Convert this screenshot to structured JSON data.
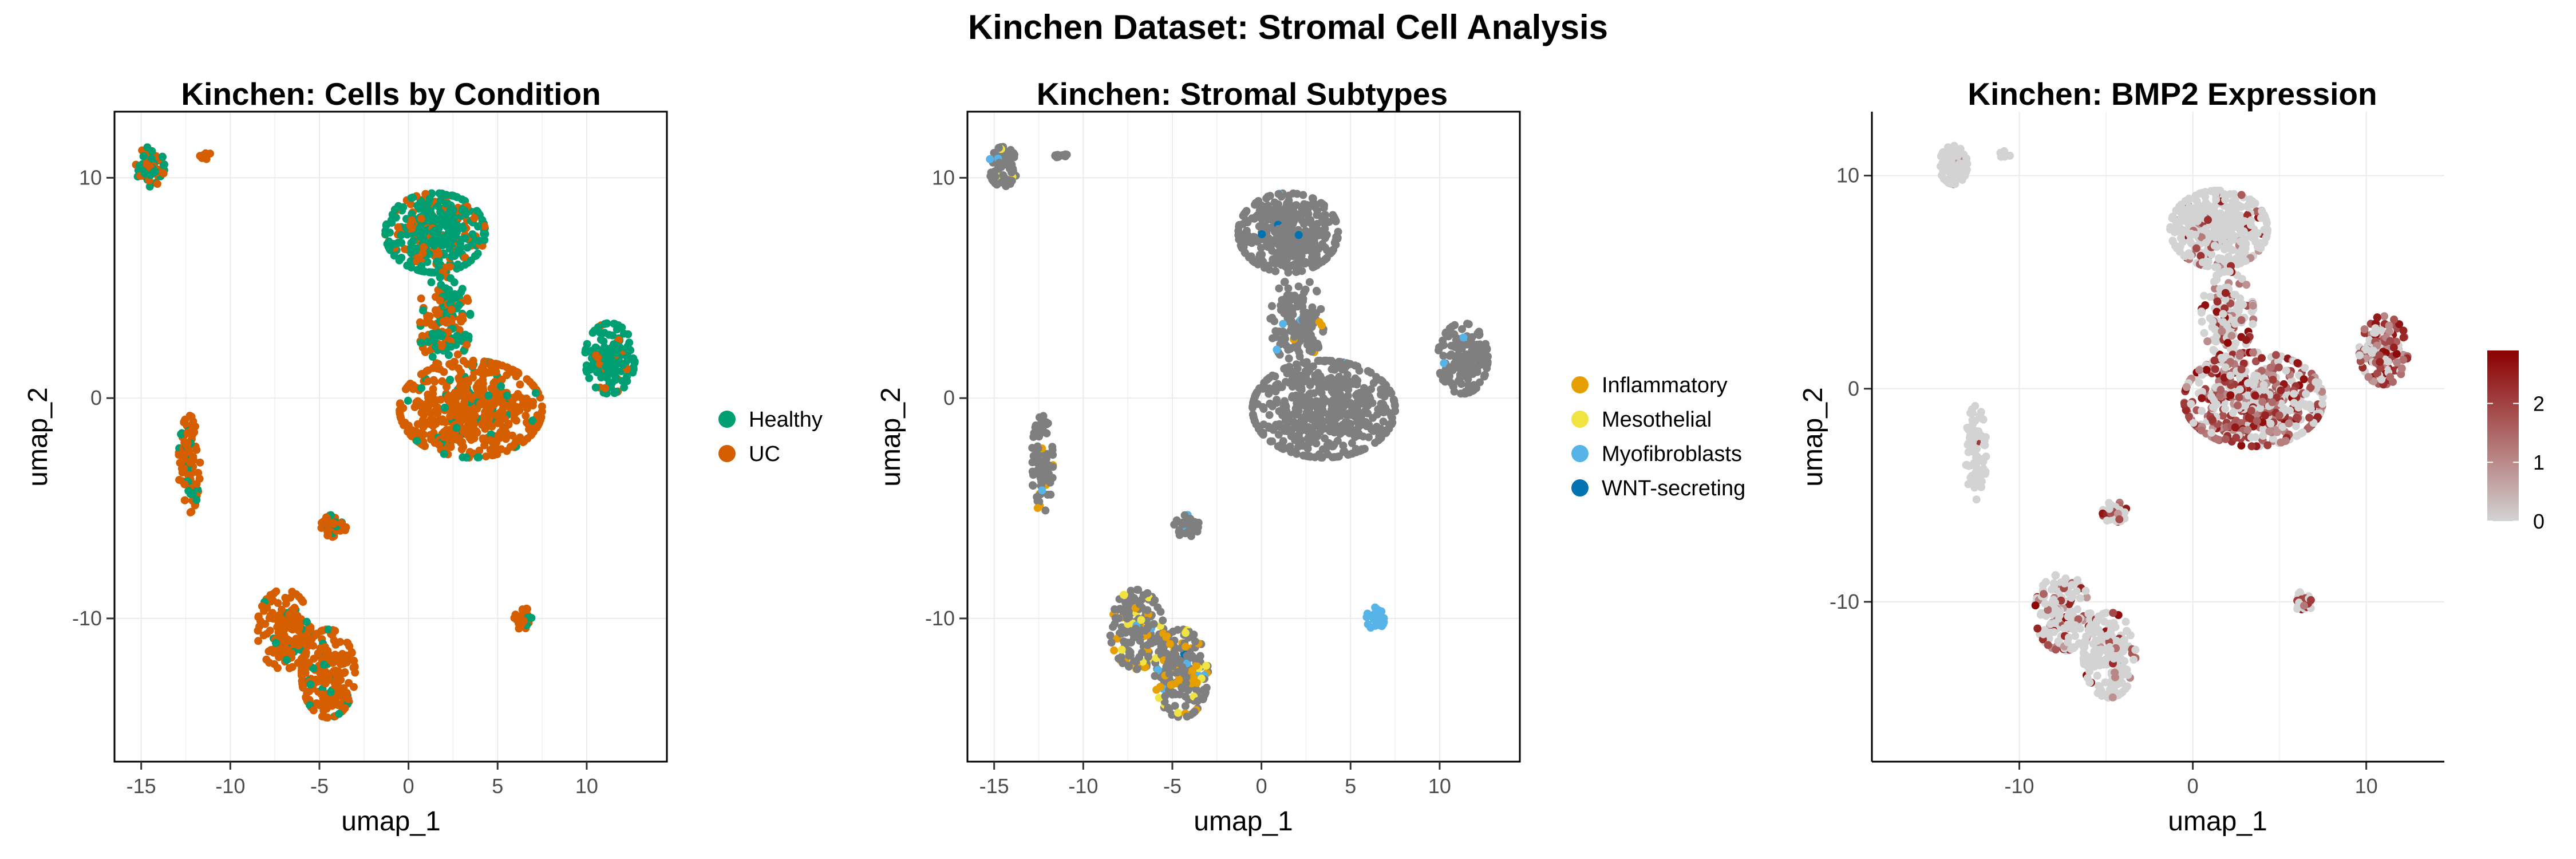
{
  "figure": {
    "title": "Kinchen Dataset: Stromal Cell Analysis"
  },
  "chart_data": [
    {
      "type": "scatter",
      "title": "Kinchen: Cells by Condition",
      "xlabel": "umap_1",
      "ylabel": "umap_2",
      "xlim": [
        -16.5,
        14.5
      ],
      "ylim": [
        -16.5,
        13
      ],
      "xticks": [
        -15,
        -10,
        -5,
        0,
        5,
        10
      ],
      "yticks": [
        -10,
        0,
        10
      ],
      "legend": {
        "placement": "right",
        "entries": [
          {
            "name": "Healthy",
            "color": "#009E73"
          },
          {
            "name": "UC",
            "color": "#D55E00"
          }
        ]
      },
      "series": [
        {
          "name": "Healthy",
          "color": "#009E73"
        },
        {
          "name": "UC",
          "color": "#D55E00"
        }
      ],
      "clusters": [
        {
          "x": -14.5,
          "y": 10.5,
          "rx": 0.8,
          "ry": 0.9,
          "n": 70,
          "mix": [
            0.55,
            0.45
          ]
        },
        {
          "x": -11.3,
          "y": 11.0,
          "rx": 0.4,
          "ry": 0.15,
          "n": 10,
          "mix": [
            0.1,
            0.9
          ]
        },
        {
          "x": -12.3,
          "y": -3.0,
          "rx": 0.6,
          "ry": 2.2,
          "n": 90,
          "mix": [
            0.2,
            0.8
          ]
        },
        {
          "x": -4.2,
          "y": -5.8,
          "rx": 0.7,
          "ry": 0.5,
          "n": 40,
          "mix": [
            0.15,
            0.85
          ]
        },
        {
          "x": 6.4,
          "y": -10.0,
          "rx": 0.5,
          "ry": 0.5,
          "n": 30,
          "mix": [
            0.1,
            0.9
          ]
        },
        {
          "x": -7.0,
          "y": -10.5,
          "rx": 1.5,
          "ry": 1.8,
          "n": 160,
          "mix": [
            0.08,
            0.92
          ]
        },
        {
          "x": -4.5,
          "y": -12.5,
          "rx": 1.5,
          "ry": 2.0,
          "n": 200,
          "mix": [
            0.08,
            0.92
          ]
        },
        {
          "x": 1.5,
          "y": 7.5,
          "rx": 2.8,
          "ry": 1.8,
          "n": 380,
          "mix": [
            0.75,
            0.25
          ]
        },
        {
          "x": 2.0,
          "y": 3.5,
          "rx": 1.5,
          "ry": 2.0,
          "n": 150,
          "mix": [
            0.5,
            0.5
          ]
        },
        {
          "x": 3.5,
          "y": -0.5,
          "rx": 4.0,
          "ry": 2.2,
          "n": 550,
          "mix": [
            0.1,
            0.9
          ]
        },
        {
          "x": 11.3,
          "y": 1.8,
          "rx": 1.4,
          "ry": 1.6,
          "n": 150,
          "mix": [
            0.88,
            0.12
          ]
        }
      ]
    },
    {
      "type": "scatter",
      "title": "Kinchen: Stromal Subtypes",
      "xlabel": "umap_1",
      "ylabel": "umap_2",
      "xlim": [
        -16.5,
        14.5
      ],
      "ylim": [
        -16.5,
        13
      ],
      "xticks": [
        -15,
        -10,
        -5,
        0,
        5,
        10
      ],
      "yticks": [
        -10,
        0,
        10
      ],
      "legend": {
        "placement": "right",
        "entries": [
          {
            "name": "Inflammatory",
            "color": "#E69F00"
          },
          {
            "name": "Mesothelial",
            "color": "#F0E442"
          },
          {
            "name": "Myofibroblasts",
            "color": "#56B4E9"
          },
          {
            "name": "WNT-secreting",
            "color": "#0072B2"
          }
        ]
      },
      "series": [
        {
          "name": "Other",
          "color": "#7f7f7f"
        },
        {
          "name": "Inflammatory",
          "color": "#E69F00"
        },
        {
          "name": "Mesothelial",
          "color": "#F0E442"
        },
        {
          "name": "Myofibroblasts",
          "color": "#56B4E9"
        },
        {
          "name": "WNT-secreting",
          "color": "#0072B2"
        }
      ],
      "clusters": [
        {
          "x": -14.5,
          "y": 10.5,
          "rx": 0.8,
          "ry": 0.9,
          "n": 70,
          "mix": [
            0.9,
            0.0,
            0.05,
            0.05,
            0.0
          ]
        },
        {
          "x": -11.3,
          "y": 11.0,
          "rx": 0.4,
          "ry": 0.15,
          "n": 10,
          "mix": [
            1,
            0,
            0,
            0,
            0
          ]
        },
        {
          "x": -12.3,
          "y": -3.0,
          "rx": 0.6,
          "ry": 2.2,
          "n": 90,
          "mix": [
            0.95,
            0.04,
            0.0,
            0.01,
            0.0
          ]
        },
        {
          "x": -4.2,
          "y": -5.8,
          "rx": 0.7,
          "ry": 0.5,
          "n": 40,
          "mix": [
            0.85,
            0.0,
            0.0,
            0.15,
            0.0
          ]
        },
        {
          "x": 6.4,
          "y": -10.0,
          "rx": 0.5,
          "ry": 0.5,
          "n": 30,
          "mix": [
            0.0,
            0.0,
            0.0,
            1.0,
            0.0
          ]
        },
        {
          "x": -7.0,
          "y": -10.5,
          "rx": 1.5,
          "ry": 1.8,
          "n": 160,
          "mix": [
            0.72,
            0.18,
            0.08,
            0.02,
            0.0
          ]
        },
        {
          "x": -4.5,
          "y": -12.5,
          "rx": 1.5,
          "ry": 2.0,
          "n": 200,
          "mix": [
            0.72,
            0.2,
            0.04,
            0.03,
            0.01
          ]
        },
        {
          "x": 1.5,
          "y": 7.5,
          "rx": 2.8,
          "ry": 1.8,
          "n": 380,
          "mix": [
            0.99,
            0.0,
            0.0,
            0.005,
            0.005
          ]
        },
        {
          "x": 2.0,
          "y": 3.5,
          "rx": 1.5,
          "ry": 2.0,
          "n": 150,
          "mix": [
            0.95,
            0.02,
            0.0,
            0.03,
            0.0
          ]
        },
        {
          "x": 3.5,
          "y": -0.5,
          "rx": 4.0,
          "ry": 2.2,
          "n": 550,
          "mix": [
            0.99,
            0.005,
            0.0,
            0.005,
            0.0
          ]
        },
        {
          "x": 11.3,
          "y": 1.8,
          "rx": 1.4,
          "ry": 1.6,
          "n": 150,
          "mix": [
            0.98,
            0.0,
            0.0,
            0.02,
            0.0
          ]
        }
      ]
    },
    {
      "type": "scatter",
      "title": "Kinchen: BMP2 Expression",
      "xlabel": "umap_1",
      "ylabel": "umap_2",
      "xlim": [
        -18.5,
        14.5
      ],
      "ylim": [
        -17.5,
        13
      ],
      "xticks": [
        -10,
        0,
        10
      ],
      "yticks": [
        -10,
        0,
        10
      ],
      "colorbar": {
        "low": "#d3d3d3",
        "high": "#8b0000",
        "min": 0,
        "max": 2.9,
        "ticks": [
          0,
          1,
          2
        ]
      },
      "clusters": [
        {
          "x": -13.8,
          "y": 10.5,
          "rx": 0.8,
          "ry": 0.9,
          "n": 70,
          "expr": 0.05
        },
        {
          "x": -10.8,
          "y": 11.0,
          "rx": 0.4,
          "ry": 0.15,
          "n": 10,
          "expr": 0.0
        },
        {
          "x": -12.5,
          "y": -3.0,
          "rx": 0.6,
          "ry": 2.2,
          "n": 90,
          "expr": 0.02
        },
        {
          "x": -4.5,
          "y": -5.8,
          "rx": 0.7,
          "ry": 0.5,
          "n": 40,
          "expr": 0.3
        },
        {
          "x": 6.4,
          "y": -10.0,
          "rx": 0.5,
          "ry": 0.5,
          "n": 30,
          "expr": 0.3
        },
        {
          "x": -7.5,
          "y": -10.5,
          "rx": 1.6,
          "ry": 1.8,
          "n": 160,
          "expr": 0.3
        },
        {
          "x": -4.8,
          "y": -12.5,
          "rx": 1.5,
          "ry": 2.0,
          "n": 200,
          "expr": 0.2
        },
        {
          "x": 1.5,
          "y": 7.5,
          "rx": 2.8,
          "ry": 1.8,
          "n": 380,
          "expr": 0.08
        },
        {
          "x": 2.0,
          "y": 3.5,
          "rx": 1.5,
          "ry": 2.0,
          "n": 150,
          "expr": 0.4
        },
        {
          "x": 3.5,
          "y": -0.5,
          "rx": 4.0,
          "ry": 2.2,
          "n": 550,
          "expr": 0.6
        },
        {
          "x": 11.0,
          "y": 1.8,
          "rx": 1.4,
          "ry": 1.6,
          "n": 150,
          "expr": 0.7
        }
      ]
    }
  ]
}
